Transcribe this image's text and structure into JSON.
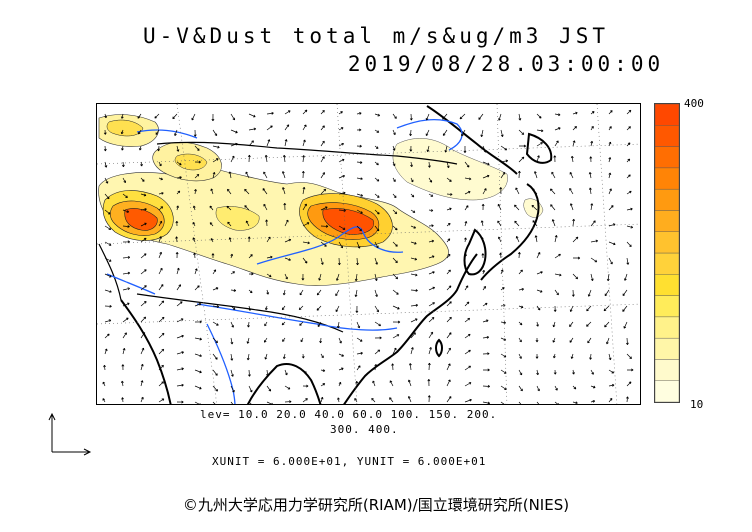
{
  "title": {
    "line1": "U-V&Dust total m/s&ug/m3 JST",
    "line2": "2019/08/28.03:00:00"
  },
  "colorbar": {
    "max_label": "400",
    "min_label": "10",
    "colors": [
      "#fffee0",
      "#fffacc",
      "#fff6a8",
      "#fff28a",
      "#ffec5a",
      "#ffe030",
      "#ffd23a",
      "#ffc22e",
      "#ffad1e",
      "#ff9a10",
      "#ff8406",
      "#ff6e02",
      "#ff5800",
      "#ff4800"
    ]
  },
  "levels": {
    "line1": "lev= 10.0 20.0 40.0 60.0 100. 150. 200.",
    "line2": "300. 400."
  },
  "units": "XUNIT = 6.000E+01, YUNIT = 6.000E+01",
  "copyright": "©九州大学応用力学研究所(RIAM)/国立環境研究所(NIES)",
  "icons": {
    "reference_vector": "reference-vector-icon"
  }
}
